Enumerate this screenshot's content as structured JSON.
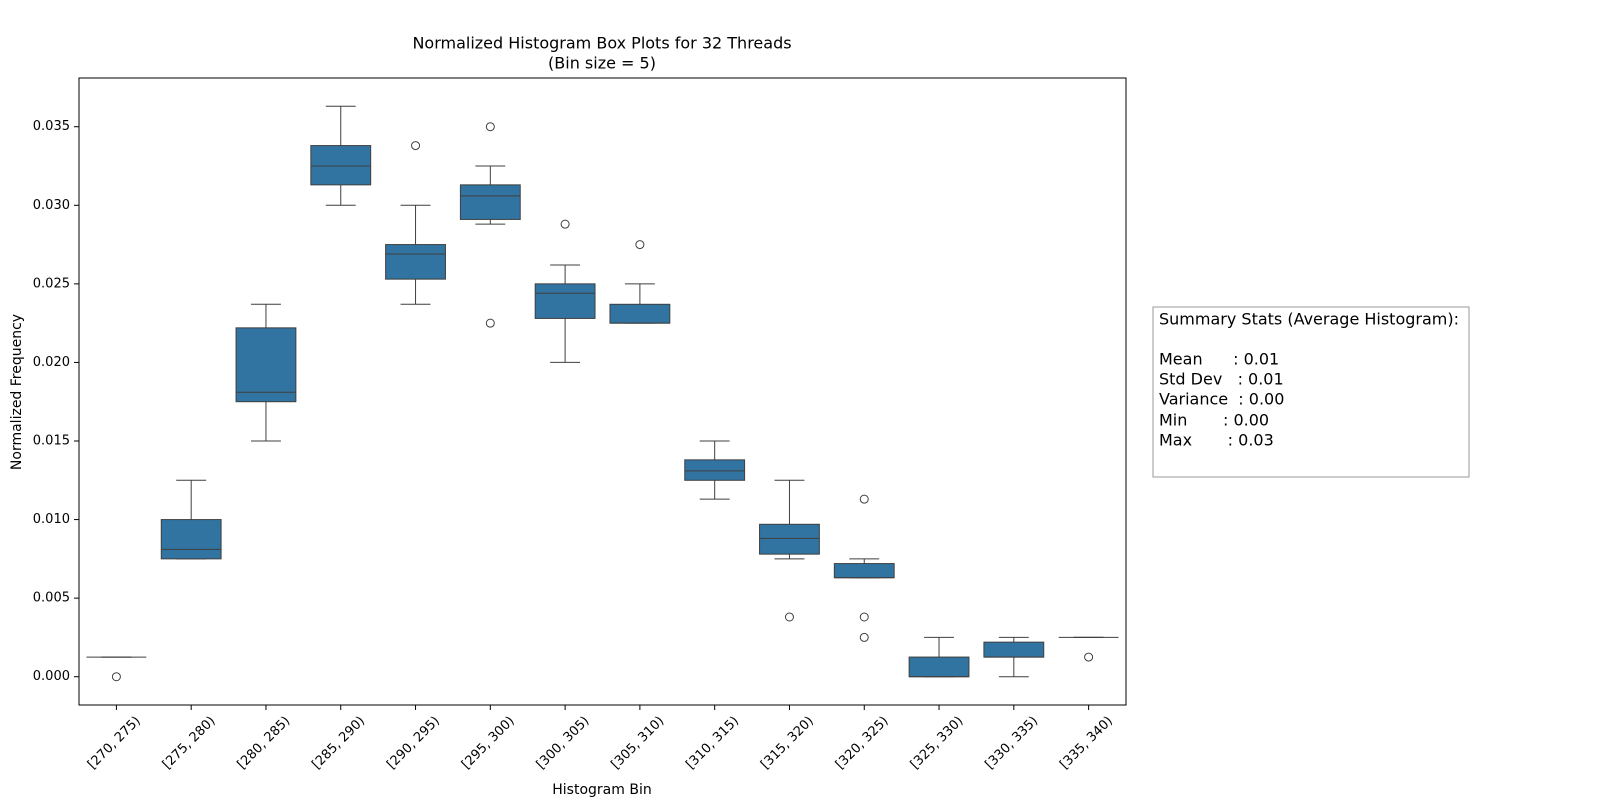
{
  "chart_data": {
    "type": "box",
    "title": "Normalized Histogram Box Plots for 32 Threads",
    "subtitle": "(Bin size = 5)",
    "x_label": "Histogram Bin",
    "y_label": "Normalized Frequency",
    "color": "#3274a1",
    "categories": [
      "[270, 275)",
      "[275, 280)",
      "[280, 285)",
      "[285, 290)",
      "[290, 295)",
      "[295, 300)",
      "[300, 305)",
      "[305, 310)",
      "[310, 315)",
      "[315, 320)",
      "[320, 325)",
      "[325, 330)",
      "[330, 335)",
      "[335, 340)"
    ],
    "boxes": [
      {
        "whislo": 0.00125,
        "q1": 0.00125,
        "med": 0.00125,
        "q3": 0.00125,
        "whishi": 0.00125,
        "fliers": [
          0
        ]
      },
      {
        "whislo": 0.0075,
        "q1": 0.0075,
        "med": 0.0081,
        "q3": 0.01,
        "whishi": 0.0125,
        "fliers": []
      },
      {
        "whislo": 0.015,
        "q1": 0.0175,
        "med": 0.0181,
        "q3": 0.0222,
        "whishi": 0.0237,
        "fliers": []
      },
      {
        "whislo": 0.03,
        "q1": 0.0313,
        "med": 0.0325,
        "q3": 0.0338,
        "whishi": 0.0363,
        "fliers": []
      },
      {
        "whislo": 0.0237,
        "q1": 0.0253,
        "med": 0.0269,
        "q3": 0.0275,
        "whishi": 0.03,
        "fliers": [
          0.0338
        ]
      },
      {
        "whislo": 0.0288,
        "q1": 0.0291,
        "med": 0.0306,
        "q3": 0.0313,
        "whishi": 0.0325,
        "fliers": [
          0.035,
          0.0225
        ]
      },
      {
        "whislo": 0.02,
        "q1": 0.0228,
        "med": 0.0244,
        "q3": 0.025,
        "whishi": 0.0262,
        "fliers": [
          0.0288
        ]
      },
      {
        "whislo": 0.0225,
        "q1": 0.0225,
        "med": 0.0225,
        "q3": 0.0237,
        "whishi": 0.025,
        "fliers": [
          0.0275
        ]
      },
      {
        "whislo": 0.0113,
        "q1": 0.0125,
        "med": 0.0131,
        "q3": 0.0138,
        "whishi": 0.015,
        "fliers": []
      },
      {
        "whislo": 0.0075,
        "q1": 0.0078,
        "med": 0.0088,
        "q3": 0.0097,
        "whishi": 0.0125,
        "fliers": [
          0.0038
        ]
      },
      {
        "whislo": 0.0063,
        "q1": 0.0063,
        "med": 0.0063,
        "q3": 0.0072,
        "whishi": 0.0075,
        "fliers": [
          0.0113,
          0.0038,
          0.0025
        ]
      },
      {
        "whislo": 0,
        "q1": 0,
        "med": 0,
        "q3": 0.00125,
        "whishi": 0.0025,
        "fliers": []
      },
      {
        "whislo": 0,
        "q1": 0.00125,
        "med": 0.00125,
        "q3": 0.0022,
        "whishi": 0.0025,
        "fliers": []
      },
      {
        "whislo": 0.0025,
        "q1": 0.0025,
        "med": 0.0025,
        "q3": 0.0025,
        "whishi": 0.0025,
        "fliers": [
          0.00125
        ]
      }
    ],
    "ylim": [
      -0.0018,
      0.0381
    ],
    "yticks": [
      {
        "value": 0,
        "label": "0.000"
      },
      0.005,
      {
        "value": 0.01,
        "label": "0.010"
      },
      0.015,
      {
        "value": 0.02,
        "label": "0.020"
      },
      0.025,
      {
        "value": 0.03,
        "label": "0.030"
      },
      0.035
    ],
    "summary": {
      "title": "Summary Stats (Average Histogram):",
      "lines": [
        "Mean      : 0.01",
        "Std Dev   : 0.01",
        "Variance  : 0.00",
        "Min       : 0.00",
        "Max       : 0.03"
      ]
    }
  }
}
